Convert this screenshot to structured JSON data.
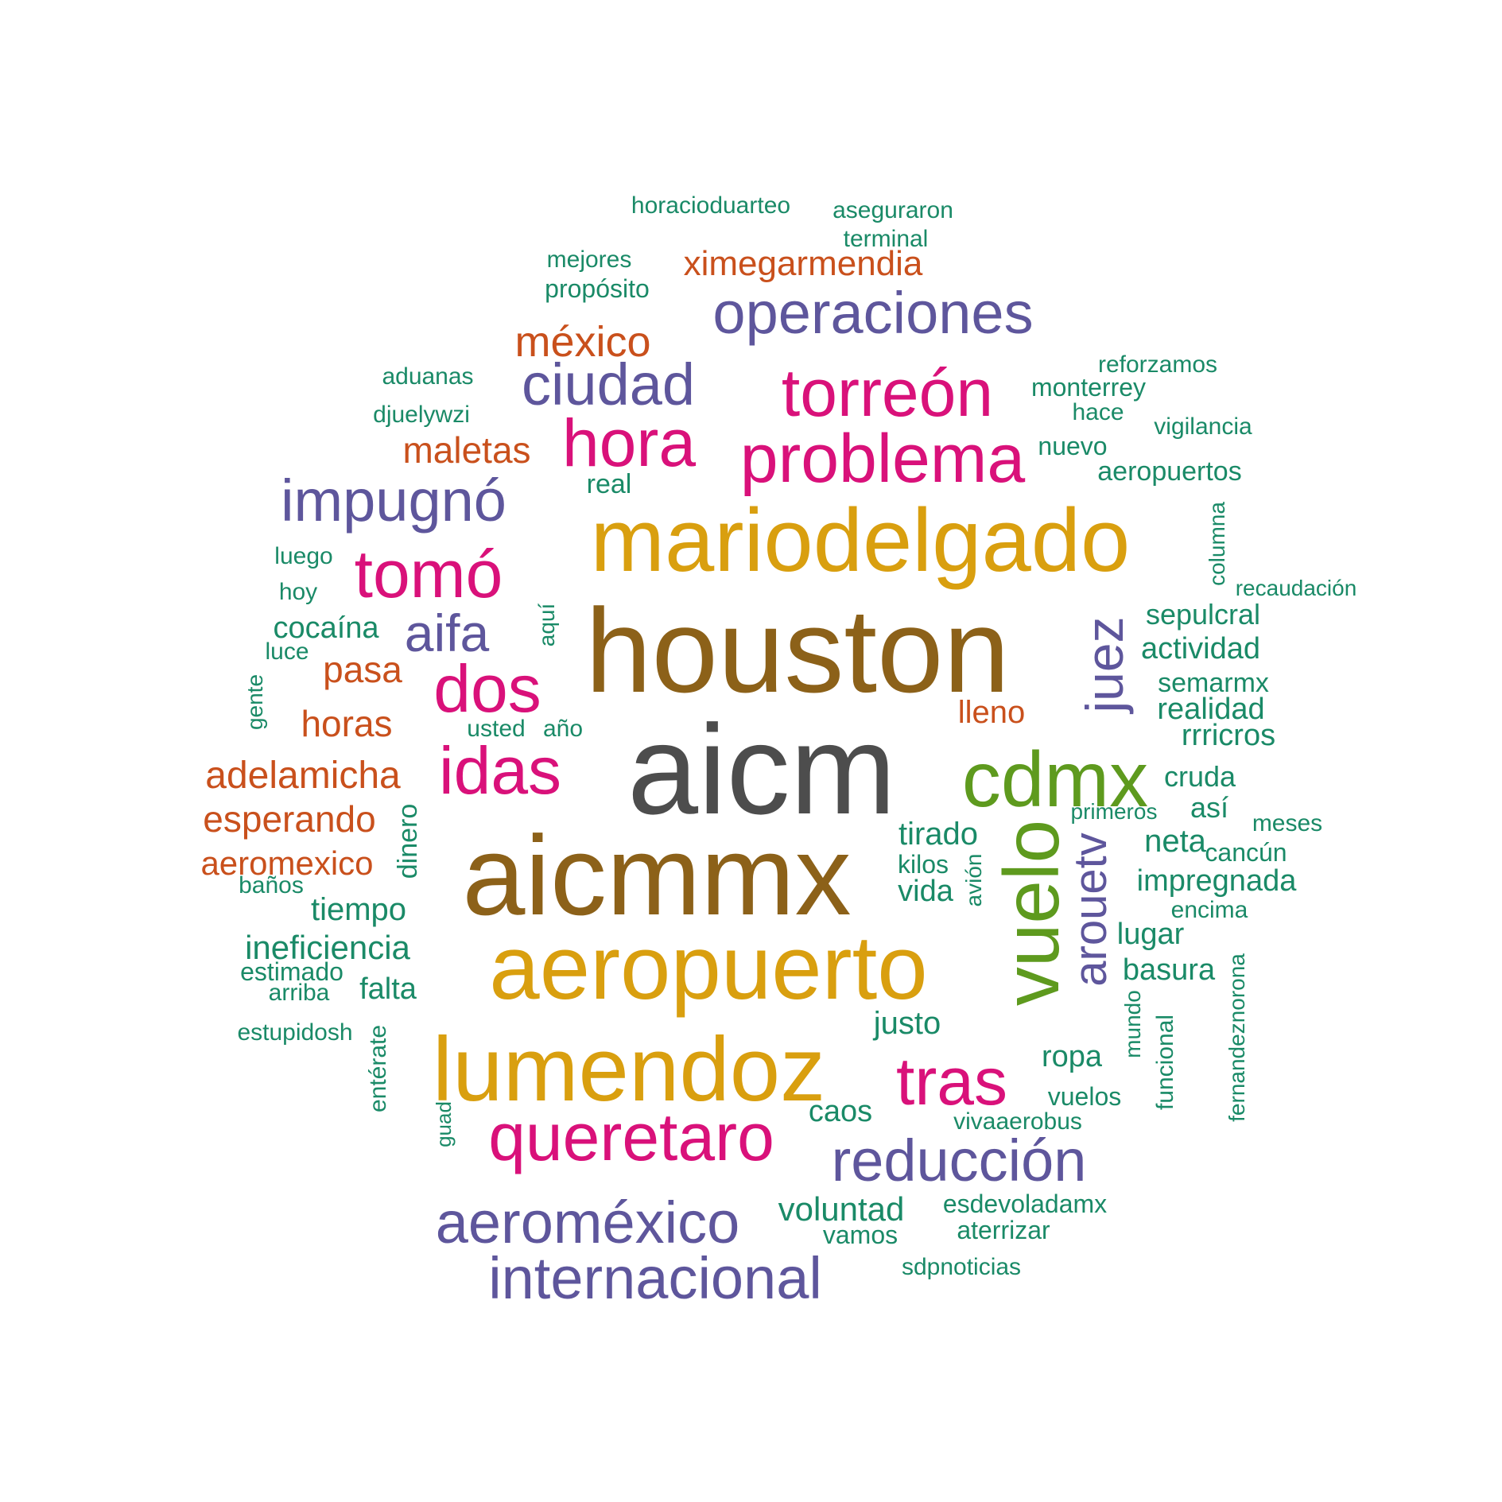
{
  "colors": {
    "dark_gray": "#4d4d4d",
    "brown": "#8c6119",
    "gold": "#d99f0f",
    "magenta": "#d9117a",
    "purple": "#5e569c",
    "orange": "#c9501c",
    "green": "#5e9a1e",
    "teal": "#1a8a67"
  },
  "words": [
    {
      "text": "aicm",
      "color": "dark_gray",
      "weight": 10
    },
    {
      "text": "houston",
      "color": "brown",
      "weight": 9
    },
    {
      "text": "aicmmx",
      "color": "brown",
      "weight": 9
    },
    {
      "text": "mariodelgado",
      "color": "gold",
      "weight": 8
    },
    {
      "text": "aeropuerto",
      "color": "gold",
      "weight": 8
    },
    {
      "text": "lumendoz",
      "color": "gold",
      "weight": 8
    },
    {
      "text": "vuelo",
      "color": "green",
      "weight": 7
    },
    {
      "text": "cdmx",
      "color": "green",
      "weight": 7
    },
    {
      "text": "problema",
      "color": "magenta",
      "weight": 6
    },
    {
      "text": "torreón",
      "color": "magenta",
      "weight": 6
    },
    {
      "text": "hora",
      "color": "magenta",
      "weight": 6
    },
    {
      "text": "tomó",
      "color": "magenta",
      "weight": 6
    },
    {
      "text": "dos",
      "color": "magenta",
      "weight": 6
    },
    {
      "text": "idas",
      "color": "magenta",
      "weight": 6
    },
    {
      "text": "tras",
      "color": "magenta",
      "weight": 6
    },
    {
      "text": "queretaro",
      "color": "magenta",
      "weight": 6
    },
    {
      "text": "operaciones",
      "color": "purple",
      "weight": 5
    },
    {
      "text": "ciudad",
      "color": "purple",
      "weight": 5
    },
    {
      "text": "impugnó",
      "color": "purple",
      "weight": 5
    },
    {
      "text": "aifa",
      "color": "purple",
      "weight": 5
    },
    {
      "text": "juez",
      "color": "purple",
      "weight": 5
    },
    {
      "text": "arouetv",
      "color": "purple",
      "weight": 5
    },
    {
      "text": "reducción",
      "color": "purple",
      "weight": 5
    },
    {
      "text": "aeroméxico",
      "color": "purple",
      "weight": 5
    },
    {
      "text": "internacional",
      "color": "purple",
      "weight": 5
    },
    {
      "text": "méxico",
      "color": "orange",
      "weight": 4
    },
    {
      "text": "ximegarmendia",
      "color": "orange",
      "weight": 4
    },
    {
      "text": "maletas",
      "color": "orange",
      "weight": 4
    },
    {
      "text": "pasa",
      "color": "orange",
      "weight": 4
    },
    {
      "text": "horas",
      "color": "orange",
      "weight": 4
    },
    {
      "text": "adelamicha",
      "color": "orange",
      "weight": 4
    },
    {
      "text": "esperando",
      "color": "orange",
      "weight": 4
    },
    {
      "text": "aeromexico",
      "color": "orange",
      "weight": 4
    },
    {
      "text": "lleno",
      "color": "orange",
      "weight": 4
    },
    {
      "text": "horacioduarteo",
      "color": "teal",
      "weight": 1
    },
    {
      "text": "aseguraron",
      "color": "teal",
      "weight": 1
    },
    {
      "text": "terminal",
      "color": "teal",
      "weight": 1
    },
    {
      "text": "mejores",
      "color": "teal",
      "weight": 1
    },
    {
      "text": "propósito",
      "color": "teal",
      "weight": 1
    },
    {
      "text": "aduanas",
      "color": "teal",
      "weight": 1
    },
    {
      "text": "djuelywzi",
      "color": "teal",
      "weight": 1
    },
    {
      "text": "reforzamos",
      "color": "teal",
      "weight": 1
    },
    {
      "text": "monterrey",
      "color": "teal",
      "weight": 1
    },
    {
      "text": "hace",
      "color": "teal",
      "weight": 1
    },
    {
      "text": "vigilancia",
      "color": "teal",
      "weight": 1
    },
    {
      "text": "nuevo",
      "color": "teal",
      "weight": 1
    },
    {
      "text": "aeropuertos",
      "color": "teal",
      "weight": 1
    },
    {
      "text": "real",
      "color": "teal",
      "weight": 1
    },
    {
      "text": "columna",
      "color": "teal",
      "weight": 1
    },
    {
      "text": "recaudación",
      "color": "teal",
      "weight": 1
    },
    {
      "text": "luego",
      "color": "teal",
      "weight": 1
    },
    {
      "text": "hoy",
      "color": "teal",
      "weight": 1
    },
    {
      "text": "sepulcral",
      "color": "teal",
      "weight": 1
    },
    {
      "text": "aquí",
      "color": "teal",
      "weight": 1
    },
    {
      "text": "cocaína",
      "color": "teal",
      "weight": 1
    },
    {
      "text": "actividad",
      "color": "teal",
      "weight": 1
    },
    {
      "text": "luce",
      "color": "teal",
      "weight": 1
    },
    {
      "text": "gente",
      "color": "teal",
      "weight": 1
    },
    {
      "text": "semarmx",
      "color": "teal",
      "weight": 1
    },
    {
      "text": "realidad",
      "color": "teal",
      "weight": 1
    },
    {
      "text": "usted",
      "color": "teal",
      "weight": 1
    },
    {
      "text": "año",
      "color": "teal",
      "weight": 1
    },
    {
      "text": "rrricros",
      "color": "teal",
      "weight": 1
    },
    {
      "text": "cruda",
      "color": "teal",
      "weight": 1
    },
    {
      "text": "primeros",
      "color": "teal",
      "weight": 1
    },
    {
      "text": "así",
      "color": "teal",
      "weight": 1
    },
    {
      "text": "meses",
      "color": "teal",
      "weight": 1
    },
    {
      "text": "dinero",
      "color": "teal",
      "weight": 1
    },
    {
      "text": "tirado",
      "color": "teal",
      "weight": 1
    },
    {
      "text": "neta",
      "color": "teal",
      "weight": 1
    },
    {
      "text": "cancún",
      "color": "teal",
      "weight": 1
    },
    {
      "text": "kilos",
      "color": "teal",
      "weight": 1
    },
    {
      "text": "baños",
      "color": "teal",
      "weight": 1
    },
    {
      "text": "avión",
      "color": "teal",
      "weight": 1
    },
    {
      "text": "impregnada",
      "color": "teal",
      "weight": 1
    },
    {
      "text": "vida",
      "color": "teal",
      "weight": 1
    },
    {
      "text": "tiempo",
      "color": "teal",
      "weight": 1
    },
    {
      "text": "encima",
      "color": "teal",
      "weight": 1
    },
    {
      "text": "lugar",
      "color": "teal",
      "weight": 1
    },
    {
      "text": "ineficiencia",
      "color": "teal",
      "weight": 1
    },
    {
      "text": "estimado",
      "color": "teal",
      "weight": 1
    },
    {
      "text": "basura",
      "color": "teal",
      "weight": 1
    },
    {
      "text": "arriba",
      "color": "teal",
      "weight": 1
    },
    {
      "text": "falta",
      "color": "teal",
      "weight": 1
    },
    {
      "text": "mundo",
      "color": "teal",
      "weight": 1
    },
    {
      "text": "fernandeznorona",
      "color": "teal",
      "weight": 1
    },
    {
      "text": "justo",
      "color": "teal",
      "weight": 1
    },
    {
      "text": "funcional",
      "color": "teal",
      "weight": 1
    },
    {
      "text": "estupidosh",
      "color": "teal",
      "weight": 1
    },
    {
      "text": "entérate",
      "color": "teal",
      "weight": 1
    },
    {
      "text": "ropa",
      "color": "teal",
      "weight": 1
    },
    {
      "text": "vuelos",
      "color": "teal",
      "weight": 1
    },
    {
      "text": "guad",
      "color": "teal",
      "weight": 1
    },
    {
      "text": "caos",
      "color": "teal",
      "weight": 1
    },
    {
      "text": "vivaaerobus",
      "color": "teal",
      "weight": 1
    },
    {
      "text": "voluntad",
      "color": "teal",
      "weight": 1
    },
    {
      "text": "esdevoladamx",
      "color": "teal",
      "weight": 1
    },
    {
      "text": "vamos",
      "color": "teal",
      "weight": 1
    },
    {
      "text": "aterrizar",
      "color": "teal",
      "weight": 1
    },
    {
      "text": "sdpnoticias",
      "color": "teal",
      "weight": 1
    }
  ]
}
